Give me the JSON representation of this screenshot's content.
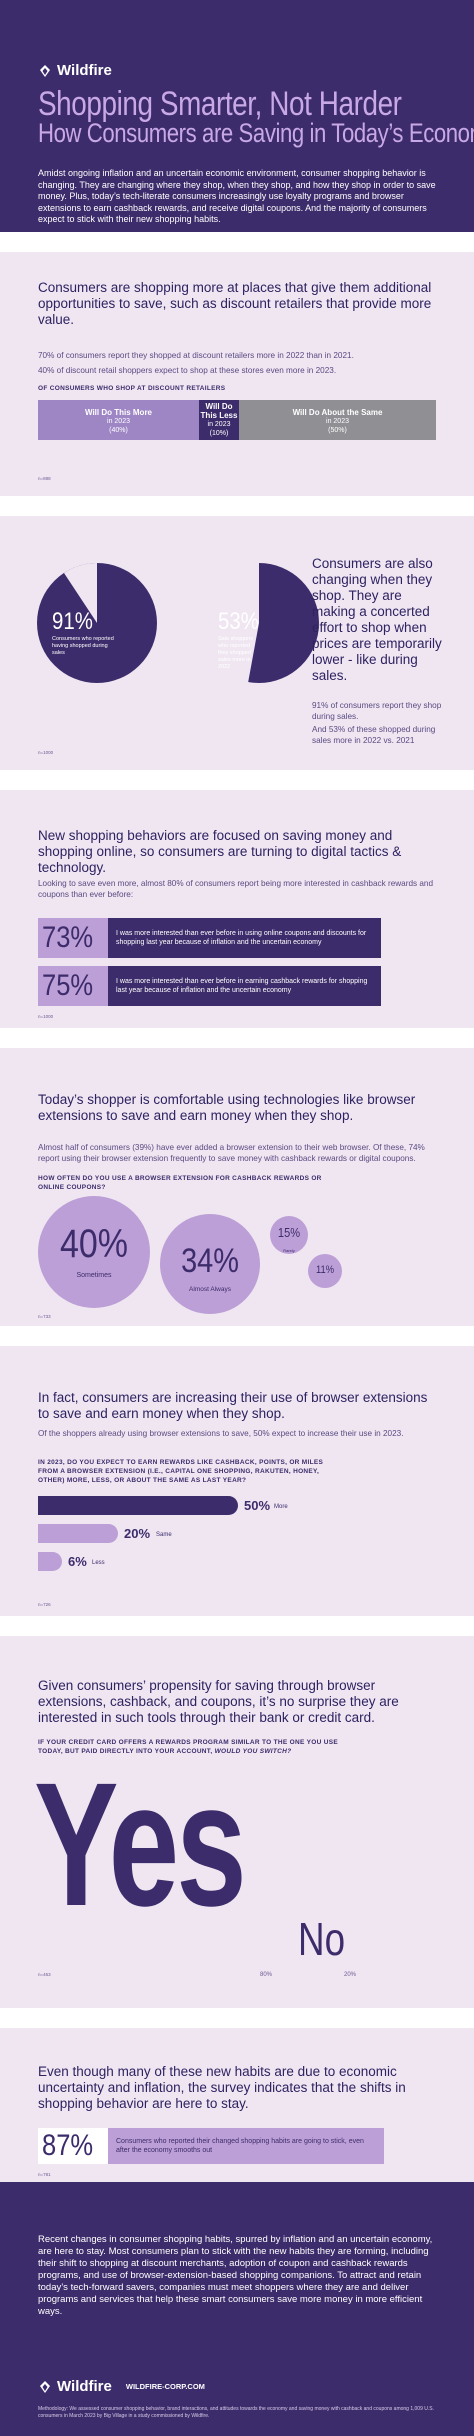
{
  "brand": {
    "name": "Wildfire",
    "url": "WILDFIRE-CORP.COM"
  },
  "hero": {
    "title": "Shopping Smarter, Not Harder",
    "subtitle": "How Consumers are Saving in Today’s Economy",
    "intro": "Amidst ongoing inflation and an uncertain economic environment, consumer shopping behavior is changing. They are changing where they shop, when they shop, and how they shop in order to save money. Plus, today’s tech-literate consumers increasingly use loyalty programs and browser extensions to earn cashback rewards, and receive digital coupons. And the majority of consumers expect to stick with their new shopping habits."
  },
  "where": {
    "headline": "Consumers are shopping more at places that give them additional opportunities to save, such as discount retailers that provide more value.",
    "stat1": "70% of consumers report they shopped at discount retailers more in 2022 than in 2021.",
    "stat2": "40% of discount retail shoppers expect to shop at these stores even more in 2023.",
    "caption": "OF CONSUMERS WHO SHOP AT DISCOUNT RETAILERS",
    "segments": [
      {
        "label": "Will Do This More",
        "sub1": "in 2023",
        "sub2": "(40%)"
      },
      {
        "label": "Will Do This Less",
        "sub1": "in 2023",
        "sub2": "(10%)"
      },
      {
        "label": "Will Do About the Same",
        "sub1": "in 2023",
        "sub2": "(50%)"
      }
    ],
    "source": "n=888"
  },
  "when": {
    "headline": "Consumers are also changing when they shop. They are making a concerted effort to shop when prices are temporarily lower - like during sales.",
    "stat1": "91% of consumers report they shop during sales.",
    "stat2": "And 53% of these shopped during sales more in 2022 vs. 2021",
    "pie1": {
      "value": "91%",
      "label": "Consumers who reported having shopped during sales"
    },
    "pie2": {
      "value": "53%",
      "label": "Sale shoppers who reported they shopped sales more in 2022"
    },
    "source": "n=1000"
  },
  "how": {
    "headline": "New shopping behaviors are focused on saving money and shopping online, so consumers are turning to digital tactics & technology.",
    "body": "Looking to save even more, almost 80% of consumers report being more interested in cashback rewards and coupons than ever before:",
    "rows": [
      {
        "value": "73%",
        "text": "I was more interested than ever before in using online coupons and discounts for shopping last year because of inflation and the uncertain economy"
      },
      {
        "value": "75%",
        "text": "I was more interested than ever before in earning cashback rewards for shopping last year because of inflation and the uncertain economy"
      }
    ],
    "source": "n=1000"
  },
  "tech": {
    "headline": "Today’s shopper is comfortable using technologies like browser extensions to save and earn money when they shop.",
    "body": "Almost half of consumers (39%) have ever added a browser extension to their web browser. Of these, 74% report using their browser extension frequently to save money with cashback rewards or digital coupons.",
    "question": "HOW OFTEN DO YOU USE A BROWSER EXTENSION FOR CASHBACK REWARDS OR ONLINE COUPONS?",
    "bubbles": [
      {
        "value": "40%",
        "label": "Sometimes"
      },
      {
        "value": "34%",
        "label": "Almost Always"
      },
      {
        "value": "15%",
        "label": "Rarely"
      },
      {
        "value": "11%",
        "label": ""
      }
    ],
    "source": "n=733"
  },
  "increase": {
    "headline": "In fact, consumers are increasing their use of browser extensions to save and earn money when they shop.",
    "body": "Of the shoppers already using browser extensions to save, 50% expect to increase their use in 2023.",
    "question": "IN 2023, DO YOU EXPECT TO EARN REWARDS LIKE CASHBACK, POINTS, OR MILES FROM A BROWSER EXTENSION (I.E., CAPITAL ONE SHOPPING, RAKUTEN, HONEY, OTHER) MORE, LESS, OR ABOUT THE SAME AS LAST YEAR?",
    "bars": [
      {
        "value": "50%",
        "label": "More"
      },
      {
        "value": "20%",
        "label": "Same"
      },
      {
        "value": "6%",
        "label": "Less"
      }
    ],
    "source": "n=726"
  },
  "switch": {
    "headline": "Given consumers’ propensity for saving through browser extensions, cashback, and coupons, it’s no surprise they are interested in such tools through their bank or credit card.",
    "question_a": "IF YOUR CREDIT CARD OFFERS A REWARDS PROGRAM SIMILAR TO THE ONE YOU USE TODAY, BUT PAID DIRECTLY INTO YOUR ACCOUNT,",
    "question_b": "WOULD YOU SWITCH?",
    "yes": "Yes",
    "no": "No",
    "yes_pct": "80%",
    "no_pct": "20%",
    "source": "n=463"
  },
  "stay": {
    "headline": "Even though many of these new habits are due to economic uncertainty and inflation, the survey indicates that the shifts in shopping behavior are here to stay.",
    "value": "87%",
    "text": "Consumers who reported their changed shopping habits are going to stick, even after the economy smooths out",
    "source": "n=781"
  },
  "footer": {
    "text": "Recent changes in consumer shopping habits, spurred by inflation and an uncertain economy, are here to stay. Most consumers plan to stick with the new habits they are forming, including their shift to shopping at discount merchants, adoption of coupon and cashback rewards programs, and use of browser-extension-based shopping companions. To attract and retain today’s tech-forward savers, companies must meet shoppers where they are and deliver programs and services that help these smart consumers save more money in more efficient ways.",
    "methodology": "Methodology: We assessed consumer shopping behavior, brand interactions, and attitudes towards the economy and saving money with cashback and coupons among 1,009 U.S. consumers in March 2023 by Big Village in a study commissioned by Wildfire."
  },
  "colors": {
    "dark": "#3d2c6b",
    "lavender": "#c9a8e6",
    "bg": "#efe6f2",
    "mid": "#9e86c5",
    "gray": "#8f8f94"
  }
}
